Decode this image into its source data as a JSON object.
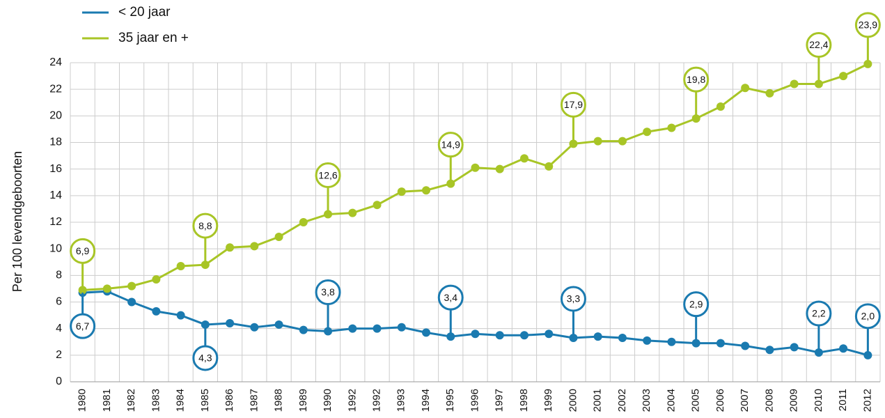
{
  "chart_data": {
    "type": "line",
    "ylabel": "Per 100 levendgeboorten",
    "categories": [
      "1980",
      "1981",
      "1982",
      "1983",
      "1984",
      "1985",
      "1986",
      "1987",
      "1988",
      "1989",
      "1990",
      "1992",
      "1992",
      "1993",
      "1994",
      "1995",
      "1996",
      "1997",
      "1998",
      "1999",
      "2000",
      "2001",
      "2002",
      "2003",
      "2004",
      "2005",
      "2006",
      "2007",
      "2008",
      "2009",
      "2010",
      "2011",
      "2012"
    ],
    "series": [
      {
        "name": "< 20 jaar",
        "color": "#1a7ab0",
        "values": [
          6.7,
          6.8,
          6.0,
          5.3,
          5.0,
          4.3,
          4.4,
          4.1,
          4.3,
          3.9,
          3.8,
          4.0,
          4.0,
          4.1,
          3.7,
          3.4,
          3.6,
          3.5,
          3.5,
          3.6,
          3.3,
          3.4,
          3.3,
          3.1,
          3.0,
          2.9,
          2.9,
          2.7,
          2.4,
          2.6,
          2.2,
          2.5,
          2.0
        ],
        "value_labels": [
          "6,7",
          null,
          null,
          null,
          null,
          "4,3",
          null,
          null,
          null,
          null,
          "3,8",
          null,
          null,
          null,
          null,
          "3,4",
          null,
          null,
          null,
          null,
          "3,3",
          null,
          null,
          null,
          null,
          "2,9",
          null,
          null,
          null,
          null,
          "2,2",
          null,
          "2,0"
        ]
      },
      {
        "name": "35 jaar en +",
        "color": "#a8c526",
        "values": [
          6.9,
          7.0,
          7.2,
          7.7,
          8.7,
          8.8,
          10.1,
          10.2,
          10.9,
          12.0,
          12.6,
          12.7,
          13.3,
          14.3,
          14.4,
          14.9,
          16.1,
          16.0,
          16.8,
          16.2,
          17.9,
          18.1,
          18.1,
          18.8,
          19.1,
          19.8,
          20.7,
          22.1,
          21.7,
          22.4,
          22.4,
          23.0,
          23.9
        ],
        "value_labels": [
          "6,9",
          null,
          null,
          null,
          null,
          "8,8",
          null,
          null,
          null,
          null,
          "12,6",
          null,
          null,
          null,
          null,
          "14,9",
          null,
          null,
          null,
          null,
          "17,9",
          null,
          null,
          null,
          null,
          "19,8",
          null,
          null,
          null,
          null,
          "22,4",
          null,
          "23,9"
        ]
      }
    ],
    "ylim": [
      0,
      24
    ],
    "yticks": [
      0,
      2,
      4,
      6,
      8,
      10,
      12,
      14,
      16,
      18,
      20,
      22,
      24
    ],
    "grid": true
  }
}
